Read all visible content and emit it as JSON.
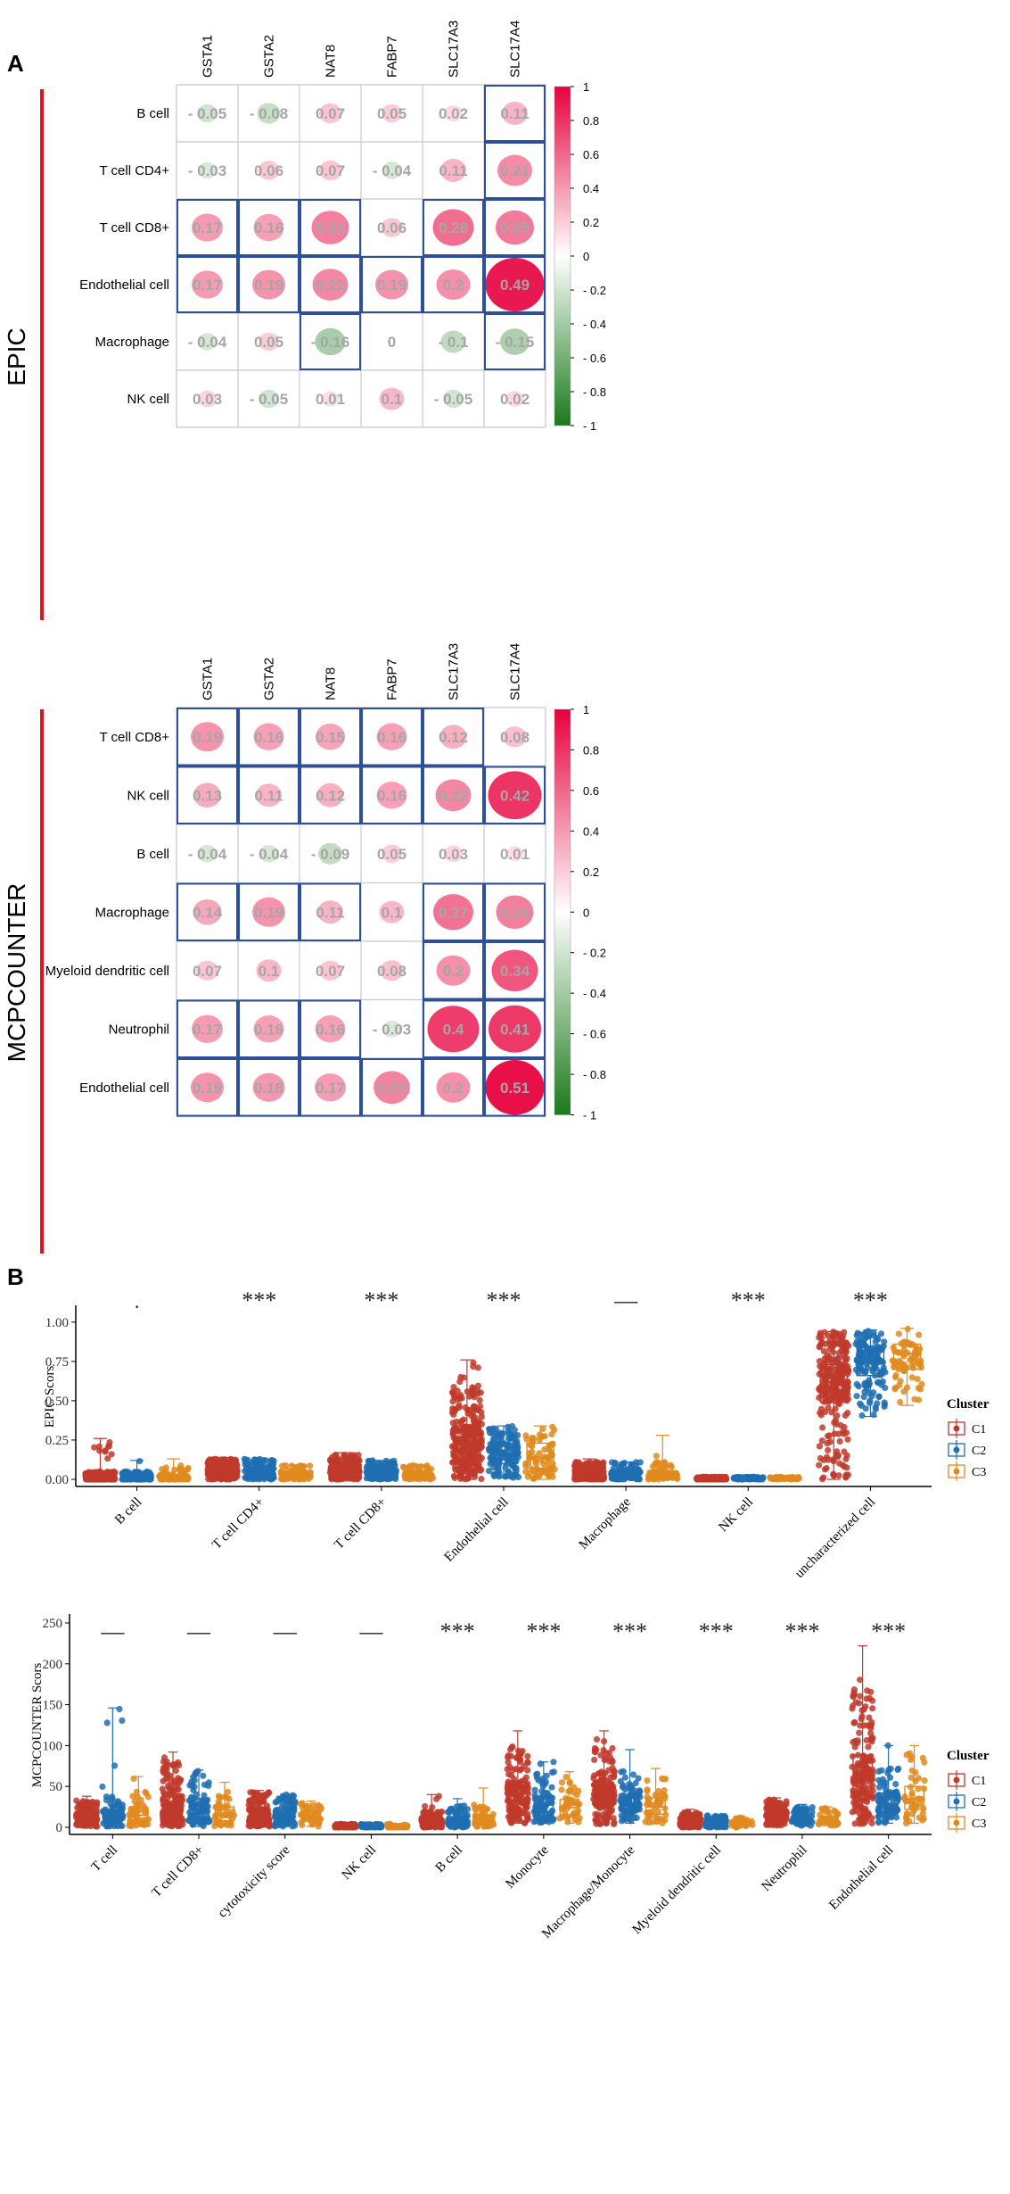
{
  "panel_a": {
    "label": "A",
    "colorbar_ticks": [
      "1",
      "0.8",
      "0.6",
      "0.4",
      "0.2",
      "0",
      "- 0.2",
      "- 0.4",
      "- 0.6",
      "- 0.8",
      "- 1"
    ],
    "colors": {
      "positive": "#e8003d",
      "negative": "#1a7a1a",
      "box": "#2e4f9a",
      "grid": "#c8c8c8",
      "value_text": "#a6a6a6",
      "side_bar": "#e2121f"
    }
  },
  "panel_b": {
    "label": "B",
    "colors": {
      "C1": "#c0392b",
      "C2": "#1f6fb2",
      "C3": "#e08a1e"
    }
  },
  "chart_data": [
    {
      "type": "heatmap",
      "title": "EPIC",
      "columns": [
        "GSTA1",
        "GSTA2",
        "NAT8",
        "FABP7",
        "SLC17A3",
        "SLC17A4"
      ],
      "rows": [
        "B cell",
        "T cell CD4+",
        "T cell CD8+",
        "Endothelial cell",
        "Macrophage",
        "NK cell"
      ],
      "value_labels": [
        [
          "- 0.05",
          "- 0.08",
          "0.07",
          "0.05",
          "0.02",
          "0.11"
        ],
        [
          "- 0.03",
          "0.06",
          "0.07",
          "- 0.04",
          "0.11",
          "0.21"
        ],
        [
          "0.17",
          "0.16",
          "0.24",
          "0.06",
          "0.28",
          "0.25"
        ],
        [
          "0.17",
          "0.19",
          "0.22",
          "0.19",
          "0.2",
          "0.49"
        ],
        [
          "- 0.04",
          "0.05",
          "- 0.16",
          "0",
          "- 0.1",
          "- 0.15"
        ],
        [
          "0.03",
          "- 0.05",
          "0.01",
          "0.1",
          "- 0.05",
          "0.02"
        ]
      ],
      "values": [
        [
          -0.05,
          -0.08,
          0.07,
          0.05,
          0.02,
          0.11
        ],
        [
          -0.03,
          0.06,
          0.07,
          -0.04,
          0.11,
          0.21
        ],
        [
          0.17,
          0.16,
          0.24,
          0.06,
          0.28,
          0.25
        ],
        [
          0.17,
          0.19,
          0.22,
          0.19,
          0.2,
          0.49
        ],
        [
          -0.04,
          0.05,
          -0.16,
          0,
          -0.1,
          -0.15
        ],
        [
          0.03,
          -0.05,
          0.01,
          0.1,
          -0.05,
          0.02
        ]
      ],
      "significant": [
        [
          0,
          0,
          0,
          0,
          0,
          1
        ],
        [
          0,
          0,
          0,
          0,
          0,
          1
        ],
        [
          1,
          1,
          1,
          0,
          1,
          1
        ],
        [
          1,
          1,
          1,
          1,
          1,
          1
        ],
        [
          0,
          0,
          1,
          0,
          0,
          1
        ],
        [
          0,
          0,
          0,
          0,
          0,
          0
        ]
      ],
      "color_range": [
        -1,
        1
      ]
    },
    {
      "type": "heatmap",
      "title": "MCPCOUNTER",
      "columns": [
        "GSTA1",
        "GSTA2",
        "NAT8",
        "FABP7",
        "SLC17A3",
        "SLC17A4"
      ],
      "rows": [
        "T cell CD8+",
        "NK cell",
        "B cell",
        "Macrophage",
        "Myeloid dendritic cell",
        "Neutrophil",
        "Endothelial cell"
      ],
      "value_labels": [
        [
          "0.19",
          "0.16",
          "0.15",
          "0.16",
          "0.12",
          "0.08"
        ],
        [
          "0.13",
          "0.11",
          "0.12",
          "0.16",
          "0.22",
          "0.42"
        ],
        [
          "- 0.04",
          "- 0.04",
          "- 0.09",
          "0.05",
          "0.03",
          "0.01"
        ],
        [
          "0.14",
          "0.19",
          "0.11",
          "0.1",
          "0.27",
          "0.24"
        ],
        [
          "0.07",
          "0.1",
          "0.07",
          "0.08",
          "0.2",
          "0.34"
        ],
        [
          "0.17",
          "0.16",
          "0.16",
          "- 0.03",
          "0.4",
          "0.41"
        ],
        [
          "0.19",
          "0.18",
          "0.17",
          "0.23",
          "0.2",
          "0.51"
        ]
      ],
      "values": [
        [
          0.19,
          0.16,
          0.15,
          0.16,
          0.12,
          0.08
        ],
        [
          0.13,
          0.11,
          0.12,
          0.16,
          0.22,
          0.42
        ],
        [
          -0.04,
          -0.04,
          -0.09,
          0.05,
          0.03,
          0.01
        ],
        [
          0.14,
          0.19,
          0.11,
          0.1,
          0.27,
          0.24
        ],
        [
          0.07,
          0.1,
          0.07,
          0.08,
          0.2,
          0.34
        ],
        [
          0.17,
          0.16,
          0.16,
          -0.03,
          0.4,
          0.41
        ],
        [
          0.19,
          0.18,
          0.17,
          0.23,
          0.2,
          0.51
        ]
      ],
      "significant": [
        [
          1,
          1,
          1,
          1,
          1,
          0
        ],
        [
          1,
          1,
          1,
          1,
          1,
          1
        ],
        [
          0,
          0,
          0,
          0,
          0,
          0
        ],
        [
          1,
          1,
          1,
          0,
          1,
          1
        ],
        [
          0,
          0,
          0,
          0,
          1,
          1
        ],
        [
          1,
          1,
          1,
          0,
          1,
          1
        ],
        [
          1,
          1,
          1,
          1,
          1,
          1
        ]
      ],
      "color_range": [
        -1,
        1
      ]
    },
    {
      "type": "scatter",
      "subtype": "boxplot-jitter",
      "ylabel": "EPIC Scors",
      "yticks": [
        "0.00",
        "0.25",
        "0.50",
        "0.75",
        "1.00"
      ],
      "ylim": [
        0,
        1.05
      ],
      "categories": [
        "B cell",
        "T cell CD4+",
        "T cell CD8+",
        "Endothelial cell",
        "Macrophage",
        "NK cell",
        "uncharacterized cell"
      ],
      "significance": [
        ".",
        "***",
        "***",
        "***",
        "—",
        "***",
        "***"
      ],
      "legend_title": "Cluster",
      "series": [
        {
          "name": "C1",
          "n": 300,
          "stats": [
            {
              "median": 0.01,
              "q1": 0.0,
              "q3": 0.02,
              "min": 0,
              "max": 0.26
            },
            {
              "median": 0.05,
              "q1": 0.03,
              "q3": 0.07,
              "min": 0.0,
              "max": 0.14
            },
            {
              "median": 0.05,
              "q1": 0.03,
              "q3": 0.08,
              "min": 0.0,
              "max": 0.17
            },
            {
              "median": 0.22,
              "q1": 0.12,
              "q3": 0.34,
              "min": 0.0,
              "max": 0.76
            },
            {
              "median": 0.03,
              "q1": 0.01,
              "q3": 0.05,
              "min": 0,
              "max": 0.13
            },
            {
              "median": 0.005,
              "q1": 0.002,
              "q3": 0.008,
              "min": 0,
              "max": 0.015
            },
            {
              "median": 0.62,
              "q1": 0.49,
              "q3": 0.73,
              "min": 0.0,
              "max": 0.94
            }
          ]
        },
        {
          "name": "C2",
          "n": 160,
          "stats": [
            {
              "median": 0.01,
              "q1": 0.0,
              "q3": 0.02,
              "min": 0,
              "max": 0.12
            },
            {
              "median": 0.04,
              "q1": 0.02,
              "q3": 0.07,
              "min": 0.0,
              "max": 0.13
            },
            {
              "median": 0.05,
              "q1": 0.02,
              "q3": 0.07,
              "min": 0.0,
              "max": 0.12
            },
            {
              "median": 0.16,
              "q1": 0.1,
              "q3": 0.23,
              "min": 0.01,
              "max": 0.34
            },
            {
              "median": 0.03,
              "q1": 0.01,
              "q3": 0.05,
              "min": 0,
              "max": 0.11
            },
            {
              "median": 0.006,
              "q1": 0.003,
              "q3": 0.009,
              "min": 0,
              "max": 0.015
            },
            {
              "median": 0.76,
              "q1": 0.66,
              "q3": 0.84,
              "min": 0.4,
              "max": 0.95
            }
          ]
        },
        {
          "name": "C3",
          "n": 80,
          "stats": [
            {
              "median": 0.01,
              "q1": 0.0,
              "q3": 0.03,
              "min": 0,
              "max": 0.13
            },
            {
              "median": 0.03,
              "q1": 0.01,
              "q3": 0.05,
              "min": 0.0,
              "max": 0.09
            },
            {
              "median": 0.03,
              "q1": 0.01,
              "q3": 0.05,
              "min": 0.0,
              "max": 0.09
            },
            {
              "median": 0.14,
              "q1": 0.07,
              "q3": 0.23,
              "min": 0.0,
              "max": 0.34
            },
            {
              "median": 0.03,
              "q1": 0.01,
              "q3": 0.05,
              "min": 0,
              "max": 0.28
            },
            {
              "median": 0.006,
              "q1": 0.003,
              "q3": 0.009,
              "min": 0,
              "max": 0.015
            },
            {
              "median": 0.8,
              "q1": 0.7,
              "q3": 0.86,
              "min": 0.47,
              "max": 0.96
            }
          ]
        }
      ]
    },
    {
      "type": "scatter",
      "subtype": "boxplot-jitter",
      "ylabel": "MCPCOUNTER Scors",
      "yticks": [
        "0",
        "50",
        "100",
        "150",
        "200",
        "250"
      ],
      "ylim": [
        0,
        250
      ],
      "categories": [
        "T cell",
        "T cell CD8+",
        "cytotoxicity score",
        "NK cell",
        "B cell",
        "Monocyte",
        "Macrophage/Monocyte",
        "Myeloid dendritic cell",
        "Neutrophil",
        "Endothelial cell"
      ],
      "significance": [
        "—",
        "—",
        "—",
        "—",
        "***",
        "***",
        "***",
        "***",
        "***",
        "***"
      ],
      "legend_title": "Cluster",
      "series": [
        {
          "name": "C1",
          "n": 300,
          "stats": [
            {
              "median": 12,
              "q1": 8,
              "q3": 18,
              "min": 1,
              "max": 38
            },
            {
              "median": 22,
              "q1": 12,
              "q3": 40,
              "min": 1,
              "max": 92
            },
            {
              "median": 14,
              "q1": 8,
              "q3": 22,
              "min": 1,
              "max": 45
            },
            {
              "median": 1,
              "q1": 0.5,
              "q3": 2,
              "min": 0,
              "max": 4
            },
            {
              "median": 5,
              "q1": 2,
              "q3": 9,
              "min": 0,
              "max": 40
            },
            {
              "median": 42,
              "q1": 28,
              "q3": 56,
              "min": 5,
              "max": 118
            },
            {
              "median": 40,
              "q1": 26,
              "q3": 55,
              "min": 3,
              "max": 118
            },
            {
              "median": 6,
              "q1": 3,
              "q3": 9,
              "min": 0,
              "max": 22
            },
            {
              "median": 14,
              "q1": 9,
              "q3": 19,
              "min": 2,
              "max": 36
            },
            {
              "median": 58,
              "q1": 35,
              "q3": 88,
              "min": 4,
              "max": 222
            }
          ]
        },
        {
          "name": "C2",
          "n": 160,
          "stats": [
            {
              "median": 14,
              "q1": 8,
              "q3": 20,
              "min": 1,
              "max": 146
            },
            {
              "median": 22,
              "q1": 12,
              "q3": 35,
              "min": 1,
              "max": 70
            },
            {
              "median": 14,
              "q1": 8,
              "q3": 22,
              "min": 1,
              "max": 40
            },
            {
              "median": 1,
              "q1": 0.5,
              "q3": 2,
              "min": 0,
              "max": 4
            },
            {
              "median": 6,
              "q1": 2,
              "q3": 12,
              "min": 0,
              "max": 35
            },
            {
              "median": 28,
              "q1": 18,
              "q3": 38,
              "min": 5,
              "max": 80
            },
            {
              "median": 30,
              "q1": 20,
              "q3": 40,
              "min": 5,
              "max": 95
            },
            {
              "median": 5,
              "q1": 3,
              "q3": 8,
              "min": 0,
              "max": 15
            },
            {
              "median": 10,
              "q1": 7,
              "q3": 14,
              "min": 2,
              "max": 28
            },
            {
              "median": 28,
              "q1": 18,
              "q3": 42,
              "min": 5,
              "max": 100
            }
          ]
        },
        {
          "name": "C3",
          "n": 80,
          "stats": [
            {
              "median": 15,
              "q1": 8,
              "q3": 24,
              "min": 1,
              "max": 62
            },
            {
              "median": 14,
              "q1": 8,
              "q3": 25,
              "min": 1,
              "max": 55
            },
            {
              "median": 14,
              "q1": 8,
              "q3": 20,
              "min": 1,
              "max": 32
            },
            {
              "median": 1,
              "q1": 0.5,
              "q3": 2,
              "min": 0,
              "max": 4
            },
            {
              "median": 8,
              "q1": 3,
              "q3": 15,
              "min": 0,
              "max": 48
            },
            {
              "median": 24,
              "q1": 15,
              "q3": 34,
              "min": 5,
              "max": 68
            },
            {
              "median": 25,
              "q1": 16,
              "q3": 36,
              "min": 5,
              "max": 72
            },
            {
              "median": 4,
              "q1": 2,
              "q3": 7,
              "min": 0,
              "max": 12
            },
            {
              "median": 9,
              "q1": 6,
              "q3": 13,
              "min": 2,
              "max": 25
            },
            {
              "median": 35,
              "q1": 22,
              "q3": 50,
              "min": 5,
              "max": 100
            }
          ]
        }
      ]
    }
  ]
}
